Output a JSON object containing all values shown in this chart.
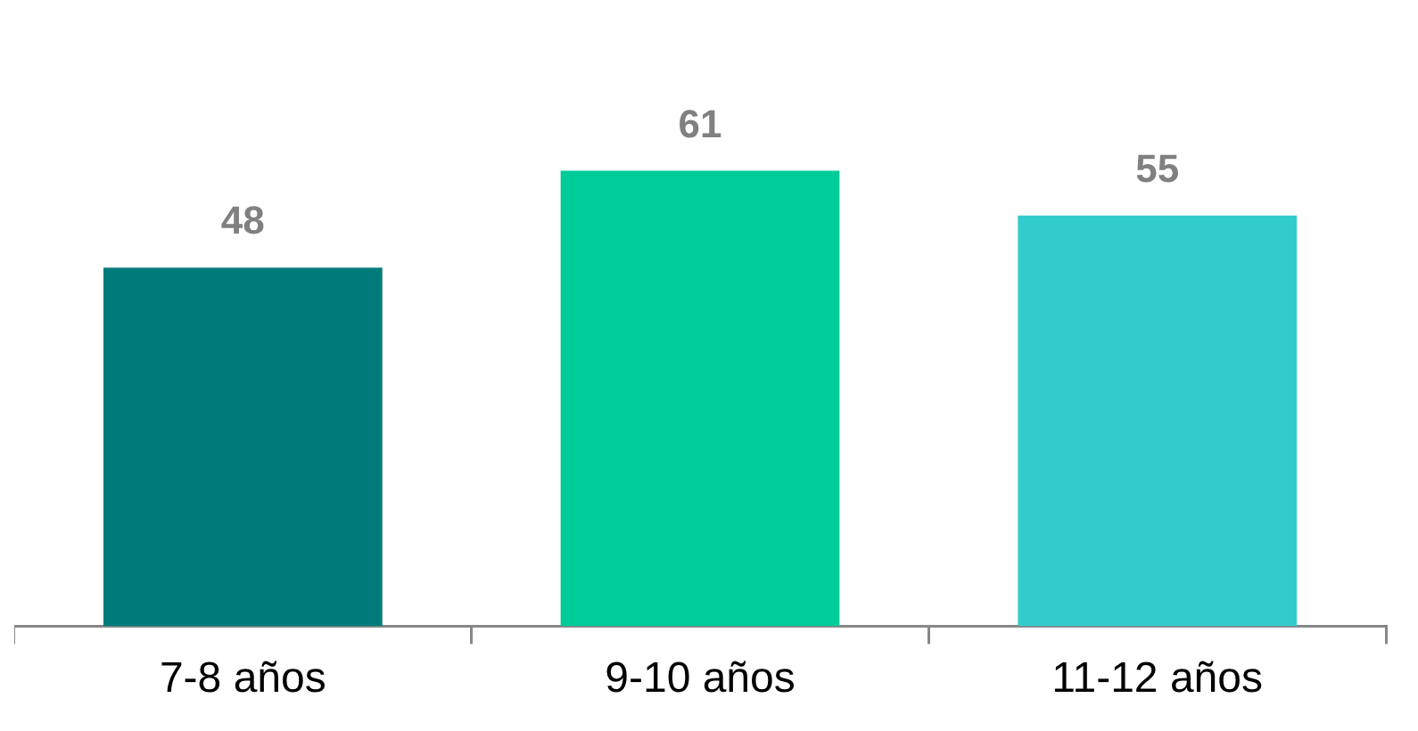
{
  "chart_data": {
    "type": "bar",
    "categories": [
      "7-8 años",
      "9-10 años",
      "11-12 años"
    ],
    "values": [
      48,
      61,
      55
    ],
    "colors": [
      "#007b7b",
      "#00cc99",
      "#33cccc"
    ],
    "data_labels": true,
    "legend": false,
    "grid": false
  }
}
